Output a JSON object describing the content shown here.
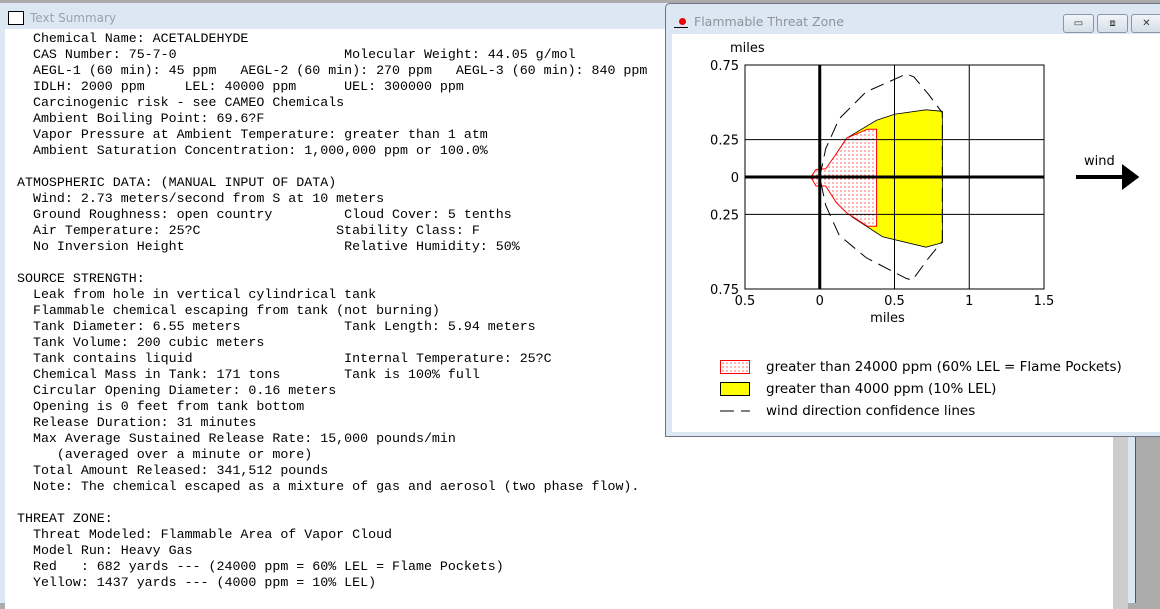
{
  "text_summary": {
    "title": "Text Summary",
    "lines": [
      "  Chemical Name: ACETALDEHYDE",
      "  CAS Number: 75-7-0                     Molecular Weight: 44.05 g/mol",
      "  AEGL-1 (60 min): 45 ppm   AEGL-2 (60 min): 270 ppm   AEGL-3 (60 min): 840 ppm",
      "  IDLH: 2000 ppm     LEL: 40000 ppm      UEL: 300000 ppm",
      "  Carcinogenic risk - see CAMEO Chemicals",
      "  Ambient Boiling Point: 69.6?F",
      "  Vapor Pressure at Ambient Temperature: greater than 1 atm",
      "  Ambient Saturation Concentration: 1,000,000 ppm or 100.0%",
      "",
      "ATMOSPHERIC DATA: (MANUAL INPUT OF DATA)",
      "  Wind: 2.73 meters/second from S at 10 meters",
      "  Ground Roughness: open country         Cloud Cover: 5 tenths",
      "  Air Temperature: 25?C                 Stability Class: F",
      "  No Inversion Height                    Relative Humidity: 50%",
      "",
      "SOURCE STRENGTH:",
      "  Leak from hole in vertical cylindrical tank",
      "  Flammable chemical escaping from tank (not burning)",
      "  Tank Diameter: 6.55 meters             Tank Length: 5.94 meters",
      "  Tank Volume: 200 cubic meters",
      "  Tank contains liquid                   Internal Temperature: 25?C",
      "  Chemical Mass in Tank: 171 tons        Tank is 100% full",
      "  Circular Opening Diameter: 0.16 meters",
      "  Opening is 0 feet from tank bottom",
      "  Release Duration: 31 minutes",
      "  Max Average Sustained Release Rate: 15,000 pounds/min",
      "     (averaged over a minute or more)",
      "  Total Amount Released: 341,512 pounds",
      "  Note: The chemical escaped as a mixture of gas and aerosol (two phase flow).",
      "",
      "THREAT ZONE:",
      "  Threat Modeled: Flammable Area of Vapor Cloud",
      "  Model Run: Heavy Gas",
      "  Red   : 682 yards --- (24000 ppm = 60% LEL = Flame Pockets)",
      "  Yellow: 1437 yards --- (4000 ppm = 10% LEL)"
    ]
  },
  "threat_window": {
    "title": "Flammable Threat Zone",
    "buttons": {
      "minimize": "▭",
      "maximize": "⧈",
      "close": "✕"
    },
    "wind_label": "wind",
    "legend": [
      {
        "label": "greater than 24000 ppm (60% LEL = Flame Pockets)",
        "color": "#ff0000"
      },
      {
        "label": "greater than 4000 ppm (10% LEL)",
        "color": "#ffff00"
      },
      {
        "label": "wind direction confidence lines",
        "color": "#000000"
      }
    ]
  },
  "chart_data": {
    "type": "area",
    "xlabel": "miles",
    "ylabel": "miles",
    "xlim": [
      -0.5,
      1.5
    ],
    "ylim": [
      -0.75,
      0.75
    ],
    "xticks": [
      -0.5,
      0,
      0.5,
      1,
      1.5
    ],
    "xtick_labels": [
      "0.5",
      "0",
      "0.5",
      "1",
      "1.5"
    ],
    "yticks": [
      0.75,
      0.25,
      0,
      -0.25,
      -0.75
    ],
    "ytick_labels": [
      "0.75",
      "0.25",
      "0",
      "0.25",
      "0.75"
    ],
    "grid": true,
    "series": [
      {
        "name": "greater than 4000 ppm (10% LEL)",
        "color": "#ffff00",
        "points": [
          [
            0.11,
            0.155
          ],
          [
            0.18,
            0.26
          ],
          [
            0.38,
            0.38
          ],
          [
            0.5,
            0.42
          ],
          [
            0.71,
            0.45
          ],
          [
            0.82,
            0.44
          ],
          [
            0.82,
            -0.44
          ],
          [
            0.71,
            -0.47
          ],
          [
            0.42,
            -0.4
          ],
          [
            0.22,
            -0.27
          ],
          [
            0.11,
            -0.17
          ]
        ]
      },
      {
        "name": "greater than 24000 ppm (60% LEL = Flame Pockets)",
        "color": "#ff0000",
        "points": [
          [
            -0.06,
            0
          ],
          [
            -0.025,
            0.05
          ],
          [
            0.04,
            0.055
          ],
          [
            0.11,
            0.155
          ],
          [
            0.18,
            0.26
          ],
          [
            0.32,
            0.32
          ],
          [
            0.38,
            0.32
          ],
          [
            0.38,
            -0.33
          ],
          [
            0.32,
            -0.33
          ],
          [
            0.18,
            -0.24
          ],
          [
            0.11,
            -0.17
          ],
          [
            0.04,
            -0.06
          ],
          [
            -0.025,
            -0.06
          ]
        ]
      },
      {
        "name": "wind direction confidence lines",
        "color": "#000000",
        "points": [
          [
            0,
            0
          ],
          [
            0.04,
            0.19
          ],
          [
            0.13,
            0.39
          ],
          [
            0.31,
            0.57
          ],
          [
            0.58,
            0.69
          ],
          [
            0.63,
            0.67
          ],
          [
            0.73,
            0.55
          ],
          [
            0.82,
            0.43
          ],
          [
            0.82,
            -0.43
          ],
          [
            0.73,
            -0.54
          ],
          [
            0.62,
            -0.69
          ],
          [
            0.58,
            -0.68
          ],
          [
            0.31,
            -0.54
          ],
          [
            0.13,
            -0.39
          ],
          [
            0.04,
            -0.19
          ],
          [
            0,
            0
          ]
        ]
      }
    ]
  }
}
